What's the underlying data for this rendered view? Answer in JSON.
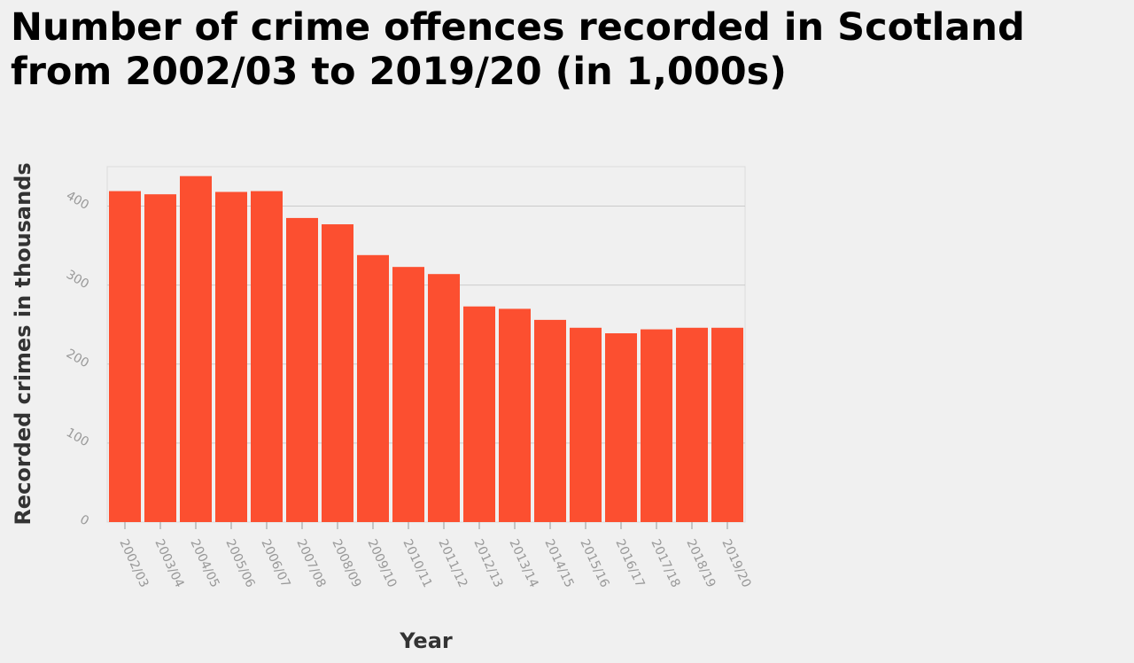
{
  "chart_data": {
    "type": "bar",
    "title": "Number of crime offences recorded in Scotland from 2002/03 to 2019/20 (in 1,000s)",
    "xlabel": "Year",
    "ylabel": "Recorded crimes in thousands",
    "categories": [
      "2002/03",
      "2003/04",
      "2004/05",
      "2005/06",
      "2006/07",
      "2007/08",
      "2008/09",
      "2009/10",
      "2010/11",
      "2011/12",
      "2012/13",
      "2013/14",
      "2014/15",
      "2015/16",
      "2016/17",
      "2017/18",
      "2018/19",
      "2019/20"
    ],
    "values": [
      419,
      415,
      438,
      418,
      419,
      385,
      377,
      338,
      323,
      314,
      273,
      270,
      256,
      246,
      239,
      244,
      246,
      246
    ],
    "yticks": [
      0,
      100,
      200,
      300,
      400
    ],
    "ylim": [
      0,
      450
    ],
    "grid": "horizontal",
    "legend": "none",
    "bar_color": "#fc4f30",
    "grid_color": "#cbcbcb"
  }
}
